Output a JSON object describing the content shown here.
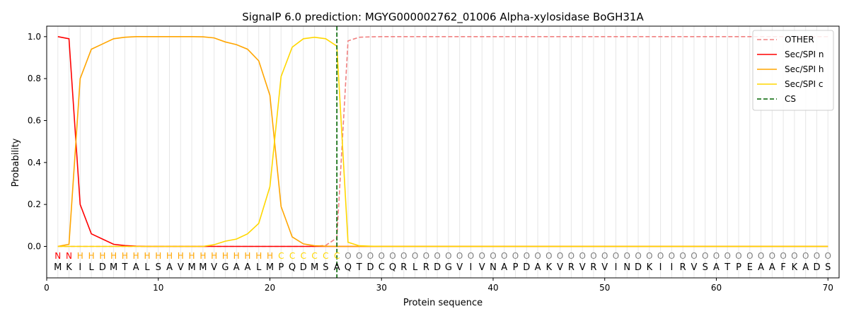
{
  "chart_data": {
    "type": "line",
    "title": "SignalP 6.0 prediction: MGYG000002762_01006 Alpha-xylosidase BoGH31A",
    "xlabel": "Protein sequence",
    "ylabel": "Probability",
    "xlim": [
      0,
      71
    ],
    "ylim": [
      -0.15,
      1.05
    ],
    "xticks": [
      0,
      10,
      20,
      30,
      40,
      50,
      60,
      70
    ],
    "yticks": [
      0.0,
      0.2,
      0.4,
      0.6,
      0.8,
      1.0
    ],
    "grid": "vertical lines at each residue",
    "legend_position": "top-right",
    "sequence": [
      "M",
      "K",
      "I",
      "L",
      "D",
      "M",
      "T",
      "A",
      "L",
      "S",
      "A",
      "V",
      "M",
      "M",
      "V",
      "G",
      "A",
      "A",
      "L",
      "M",
      "P",
      "Q",
      "D",
      "M",
      "S",
      "A",
      "Q",
      "T",
      "D",
      "C",
      "Q",
      "R",
      "L",
      "R",
      "D",
      "G",
      "V",
      "I",
      "V",
      "N",
      "A",
      "P",
      "D",
      "A",
      "K",
      "V",
      "R",
      "V",
      "R",
      "V",
      "I",
      "N",
      "D",
      "K",
      "I",
      "I",
      "R",
      "V",
      "S",
      "A",
      "T",
      "P",
      "E",
      "A",
      "A",
      "F",
      "K",
      "A",
      "D",
      "S"
    ],
    "labels": [
      "N",
      "N",
      "H",
      "H",
      "H",
      "H",
      "H",
      "H",
      "H",
      "H",
      "H",
      "H",
      "H",
      "H",
      "H",
      "H",
      "H",
      "H",
      "H",
      "H",
      "C",
      "C",
      "C",
      "C",
      "C",
      "C",
      "O",
      "O",
      "O",
      "O",
      "O",
      "O",
      "O",
      "O",
      "O",
      "O",
      "O",
      "O",
      "O",
      "O",
      "O",
      "O",
      "O",
      "O",
      "O",
      "O",
      "O",
      "O",
      "O",
      "O",
      "O",
      "O",
      "O",
      "O",
      "O",
      "O",
      "O",
      "O",
      "O",
      "O",
      "O",
      "O",
      "O",
      "O",
      "O",
      "O",
      "O",
      "O",
      "O",
      "O"
    ],
    "label_colors": {
      "N": "#ff0000",
      "H": "#ffa500",
      "C": "#ffd700",
      "O": "#808080"
    },
    "cs_position": 26,
    "series": [
      {
        "name": "OTHER",
        "color": "#f08080",
        "dash": true,
        "values": [
          0,
          0,
          0,
          0,
          0,
          0,
          0,
          0,
          0,
          0,
          0,
          0,
          0,
          0,
          0,
          0,
          0,
          0,
          0,
          0,
          0,
          0,
          0,
          0,
          0.005,
          0.04,
          0.98,
          0.997,
          0.999,
          1,
          1,
          1,
          1,
          1,
          1,
          1,
          1,
          1,
          1,
          1,
          1,
          1,
          1,
          1,
          1,
          1,
          1,
          1,
          1,
          1,
          1,
          1,
          1,
          1,
          1,
          1,
          1,
          1,
          1,
          1,
          1,
          1,
          1,
          1,
          1,
          1,
          1,
          1,
          1,
          1
        ]
      },
      {
        "name": "Sec/SPI n",
        "color": "#ff0000",
        "dash": false,
        "values": [
          1.0,
          0.99,
          0.2,
          0.06,
          0.035,
          0.01,
          0.004,
          0.001,
          0,
          0,
          0,
          0,
          0,
          0,
          0,
          0,
          0,
          0,
          0,
          0,
          0,
          0,
          0,
          0,
          0,
          0,
          0,
          0,
          0,
          0,
          0,
          0,
          0,
          0,
          0,
          0,
          0,
          0,
          0,
          0,
          0,
          0,
          0,
          0,
          0,
          0,
          0,
          0,
          0,
          0,
          0,
          0,
          0,
          0,
          0,
          0,
          0,
          0,
          0,
          0,
          0,
          0,
          0,
          0,
          0,
          0,
          0,
          0,
          0,
          0
        ]
      },
      {
        "name": "Sec/SPI h",
        "color": "#ffa500",
        "dash": false,
        "values": [
          0,
          0.01,
          0.8,
          0.94,
          0.965,
          0.99,
          0.997,
          1.0,
          1.0,
          1.0,
          1.0,
          1.0,
          1.0,
          0.999,
          0.994,
          0.975,
          0.962,
          0.94,
          0.885,
          0.72,
          0.19,
          0.045,
          0.012,
          0.003,
          0.001,
          0,
          0,
          0,
          0,
          0,
          0,
          0,
          0,
          0,
          0,
          0,
          0,
          0,
          0,
          0,
          0,
          0,
          0,
          0,
          0,
          0,
          0,
          0,
          0,
          0,
          0,
          0,
          0,
          0,
          0,
          0,
          0,
          0,
          0,
          0,
          0,
          0,
          0,
          0,
          0,
          0,
          0,
          0,
          0,
          0
        ]
      },
      {
        "name": "Sec/SPI c",
        "color": "#ffd700",
        "dash": false,
        "values": [
          0,
          0,
          0,
          0,
          0,
          0,
          0,
          0,
          0,
          0,
          0,
          0,
          0,
          0,
          0.008,
          0.025,
          0.035,
          0.06,
          0.11,
          0.285,
          0.81,
          0.95,
          0.99,
          0.997,
          0.99,
          0.955,
          0.02,
          0.003,
          0.001,
          0,
          0,
          0,
          0,
          0,
          0,
          0,
          0,
          0,
          0,
          0,
          0,
          0,
          0,
          0,
          0,
          0,
          0,
          0,
          0,
          0,
          0,
          0,
          0,
          0,
          0,
          0,
          0,
          0,
          0,
          0,
          0,
          0,
          0,
          0,
          0,
          0,
          0,
          0,
          0,
          0
        ]
      }
    ],
    "legend": [
      {
        "name": "OTHER",
        "color": "#f08080",
        "dash": true
      },
      {
        "name": "Sec/SPI n",
        "color": "#ff0000",
        "dash": false
      },
      {
        "name": "Sec/SPI h",
        "color": "#ffa500",
        "dash": false
      },
      {
        "name": "Sec/SPI c",
        "color": "#ffd700",
        "dash": false
      },
      {
        "name": "CS",
        "color": "#006400",
        "dash": true
      }
    ]
  }
}
